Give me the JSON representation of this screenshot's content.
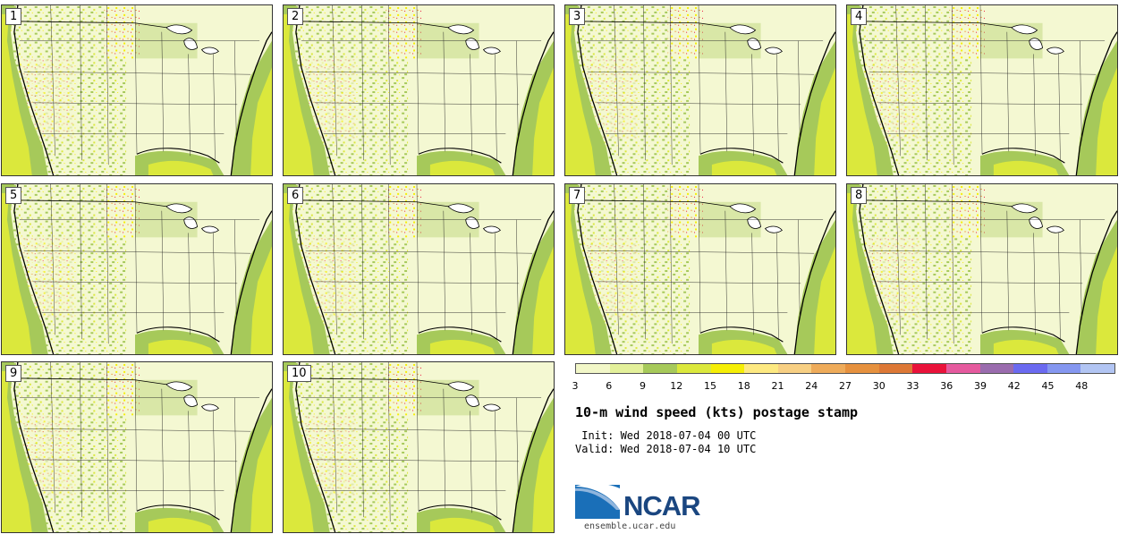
{
  "panels": [
    {
      "label": "1"
    },
    {
      "label": "2"
    },
    {
      "label": "3"
    },
    {
      "label": "4"
    },
    {
      "label": "5"
    },
    {
      "label": "6"
    },
    {
      "label": "7"
    },
    {
      "label": "8"
    },
    {
      "label": "9"
    },
    {
      "label": "10"
    }
  ],
  "colorbar": {
    "colors": [
      "#f2f7c8",
      "#e3f09a",
      "#a6c95a",
      "#dbe83c",
      "#f5ee05",
      "#fde981",
      "#f7cf83",
      "#eeab5a",
      "#e6913e",
      "#dd7836",
      "#e9123a",
      "#e55a9e",
      "#9a6cae",
      "#6b6af0",
      "#8597f0",
      "#b2c5f3"
    ],
    "ticks": [
      "3",
      "6",
      "9",
      "12",
      "15",
      "18",
      "21",
      "24",
      "27",
      "30",
      "33",
      "36",
      "39",
      "42",
      "45",
      "48"
    ]
  },
  "title": "10-m wind speed (kts) postage stamp",
  "init": " Init: Wed 2018-07-04 00 UTC",
  "valid": "Valid: Wed 2018-07-04 10 UTC",
  "logo": {
    "text": "NCAR",
    "url": "ensemble.ucar.edu"
  }
}
